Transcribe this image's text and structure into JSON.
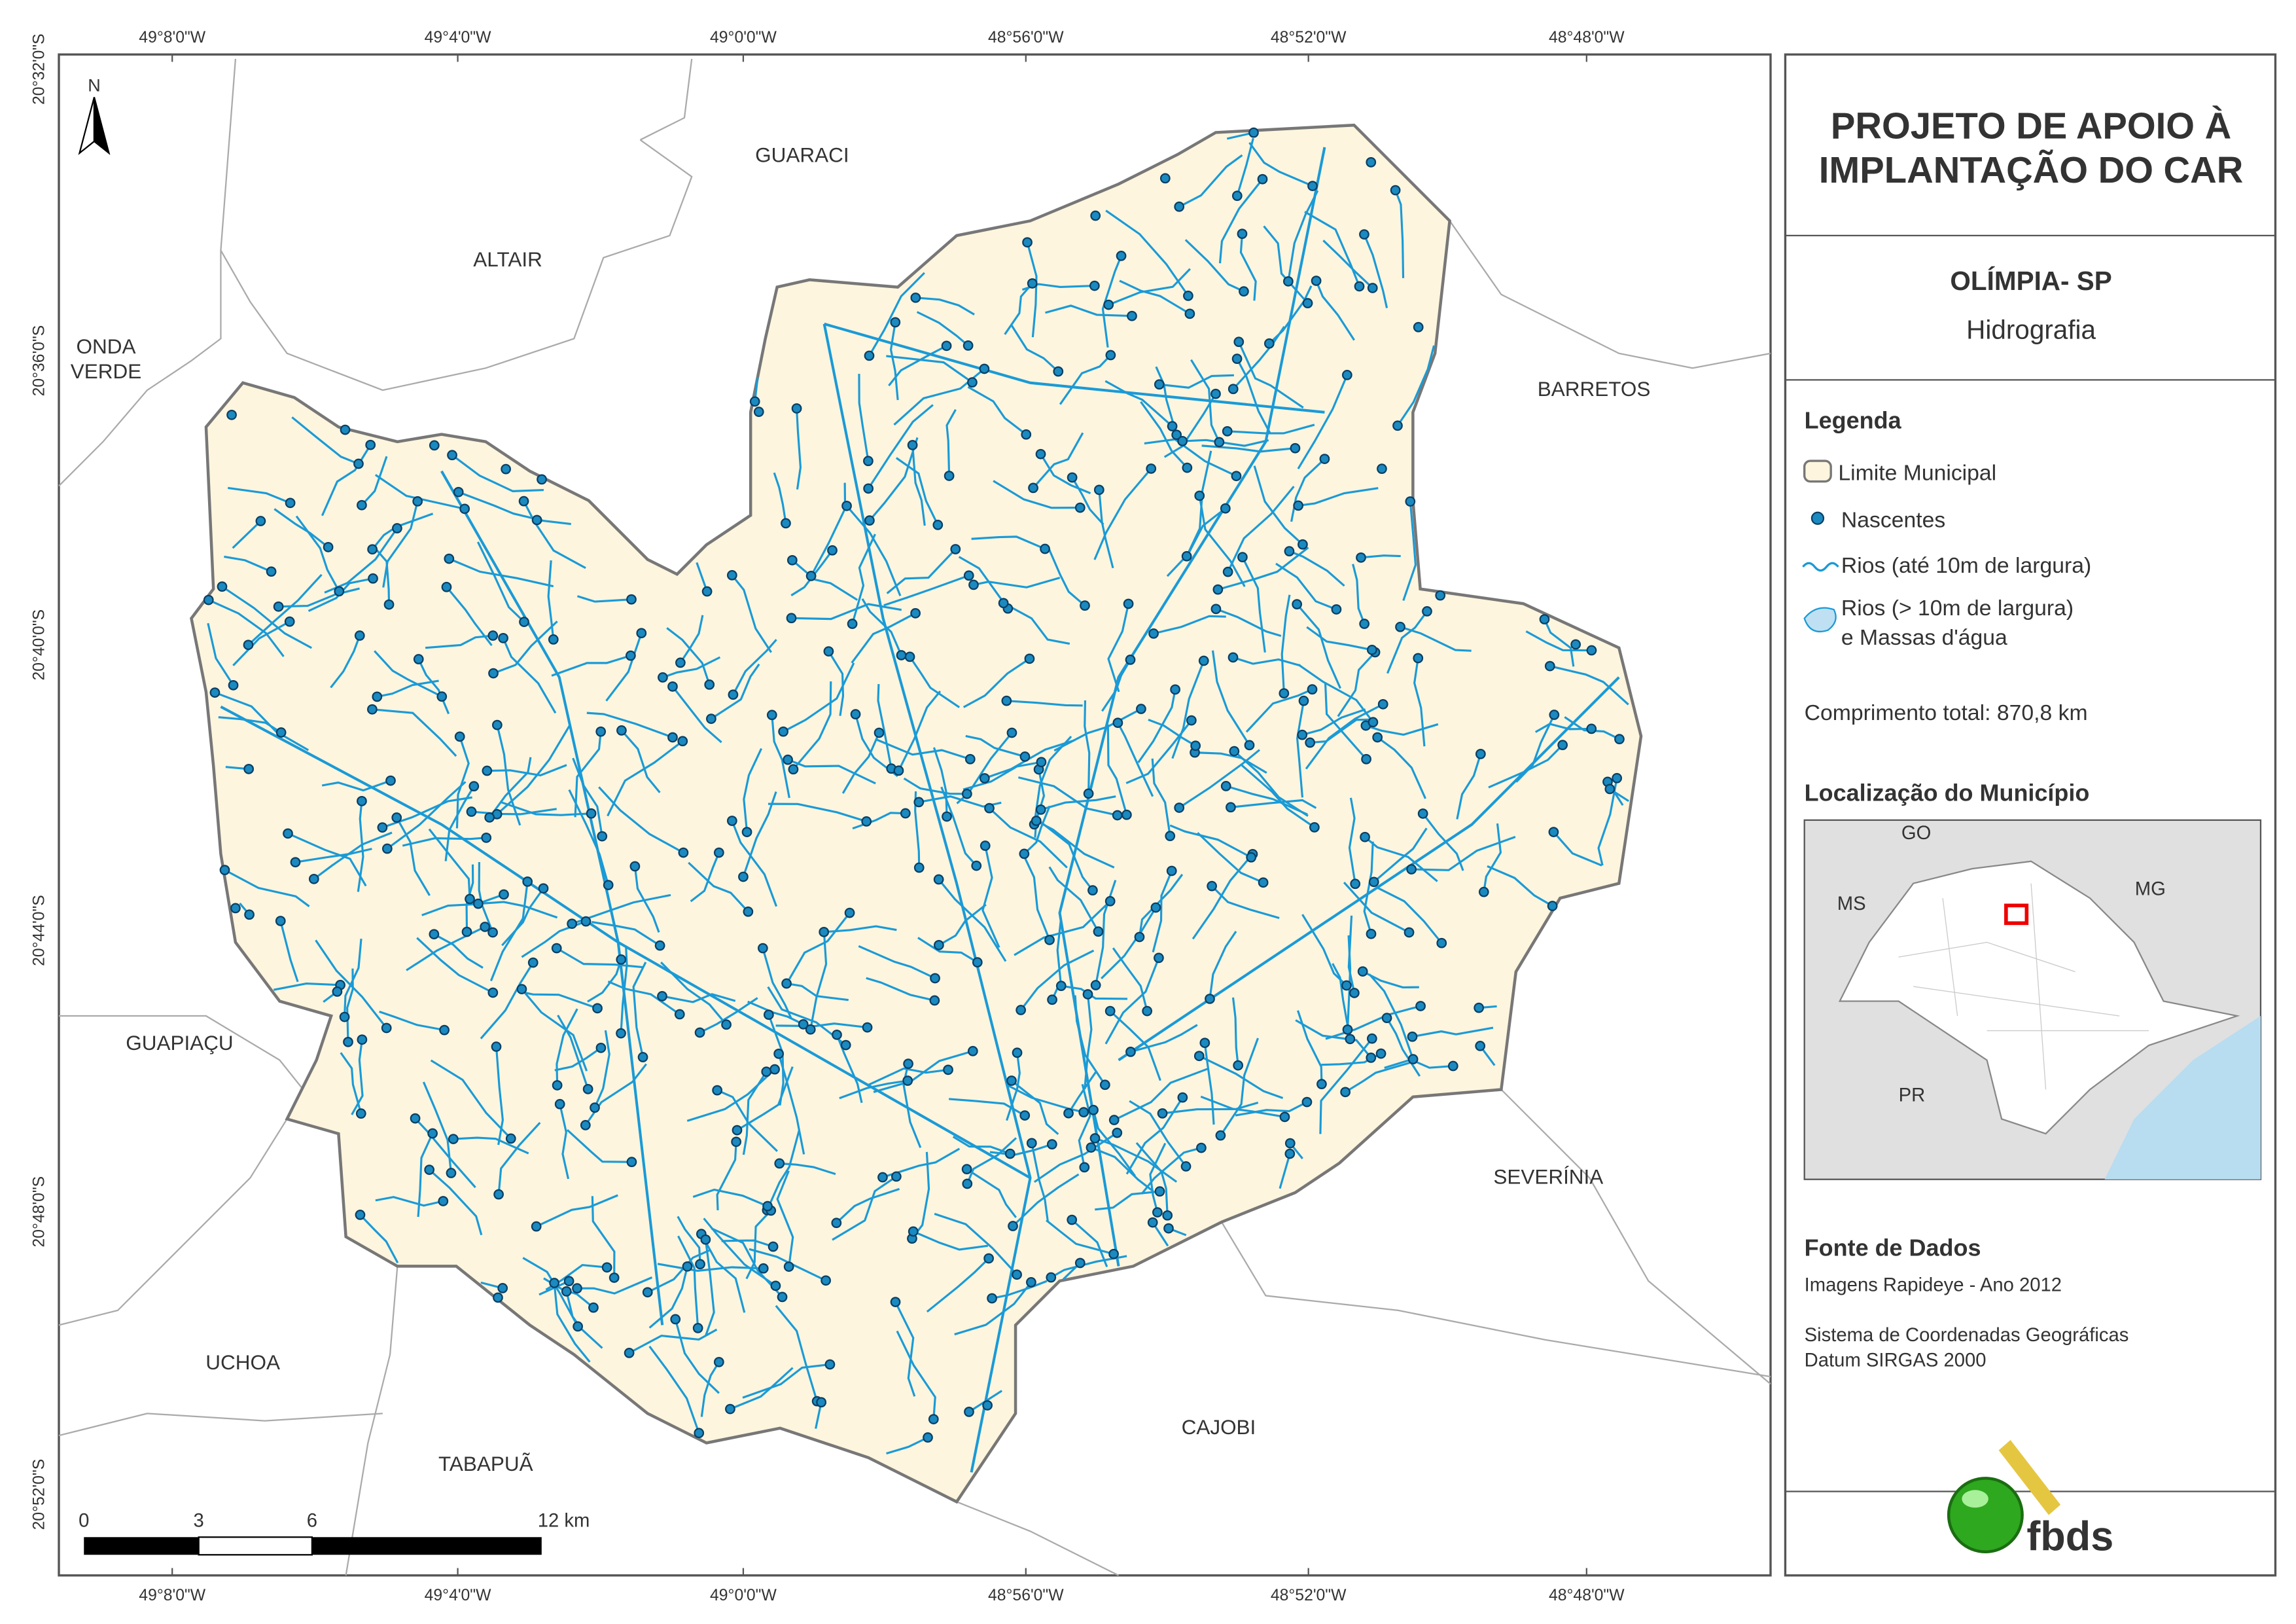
{
  "map": {
    "top_coords": [
      "49°8'0\"W",
      "49°4'0\"W",
      "49°0'0\"W",
      "48°56'0\"W",
      "48°52'0\"W",
      "48°48'0\"W"
    ],
    "bottom_coords": [
      "49°8'0\"W",
      "49°4'0\"W",
      "49°0'0\"W",
      "48°56'0\"W",
      "48°52'0\"W",
      "48°48'0\"W"
    ],
    "left_coords": [
      "20°32'0\"S",
      "20°36'0\"S",
      "20°40'0\"S",
      "20°44'0\"S",
      "20°48'0\"S",
      "20°52'0\"S"
    ],
    "neighbors": [
      [
        "GUARACI"
      ],
      [
        "ALTAIR"
      ],
      [
        "ONDA",
        "VERDE"
      ],
      [
        "BARRETOS"
      ],
      [
        "GUAPIAÇU"
      ],
      [
        "SEVERÍNIA"
      ],
      [
        "UCHOA"
      ],
      [
        "TABAPUÃ"
      ],
      [
        "CAJOBI"
      ]
    ],
    "north": "N",
    "scale": [
      "0",
      "3",
      "6",
      "12 km"
    ]
  },
  "panel": {
    "title": [
      "PROJETO DE APOIO À",
      "IMPLANTAÇÃO DO CAR"
    ],
    "municipality": "OLÍMPIA- SP",
    "theme": "Hidrografia",
    "legend": {
      "title": "Legenda",
      "items": [
        [
          "Limite Municipal"
        ],
        [
          "Nascentes"
        ],
        [
          "Rios (até 10m de largura)"
        ],
        [
          "Rios (> 10m de largura)",
          "e Massas d'água"
        ]
      ]
    },
    "total_length": "Comprimento total: 870,8 km",
    "location": {
      "title": "Localização do Município",
      "labels": [
        "GO",
        "MS",
        "MG",
        "PR"
      ]
    },
    "sources": {
      "title": "Fonte de Dados",
      "lines": [
        "Imagens Rapideye - Ano 2012",
        "Sistema de Coordenadas Geográficas",
        "Datum SIRGAS 2000"
      ]
    },
    "logo": "fbds"
  }
}
